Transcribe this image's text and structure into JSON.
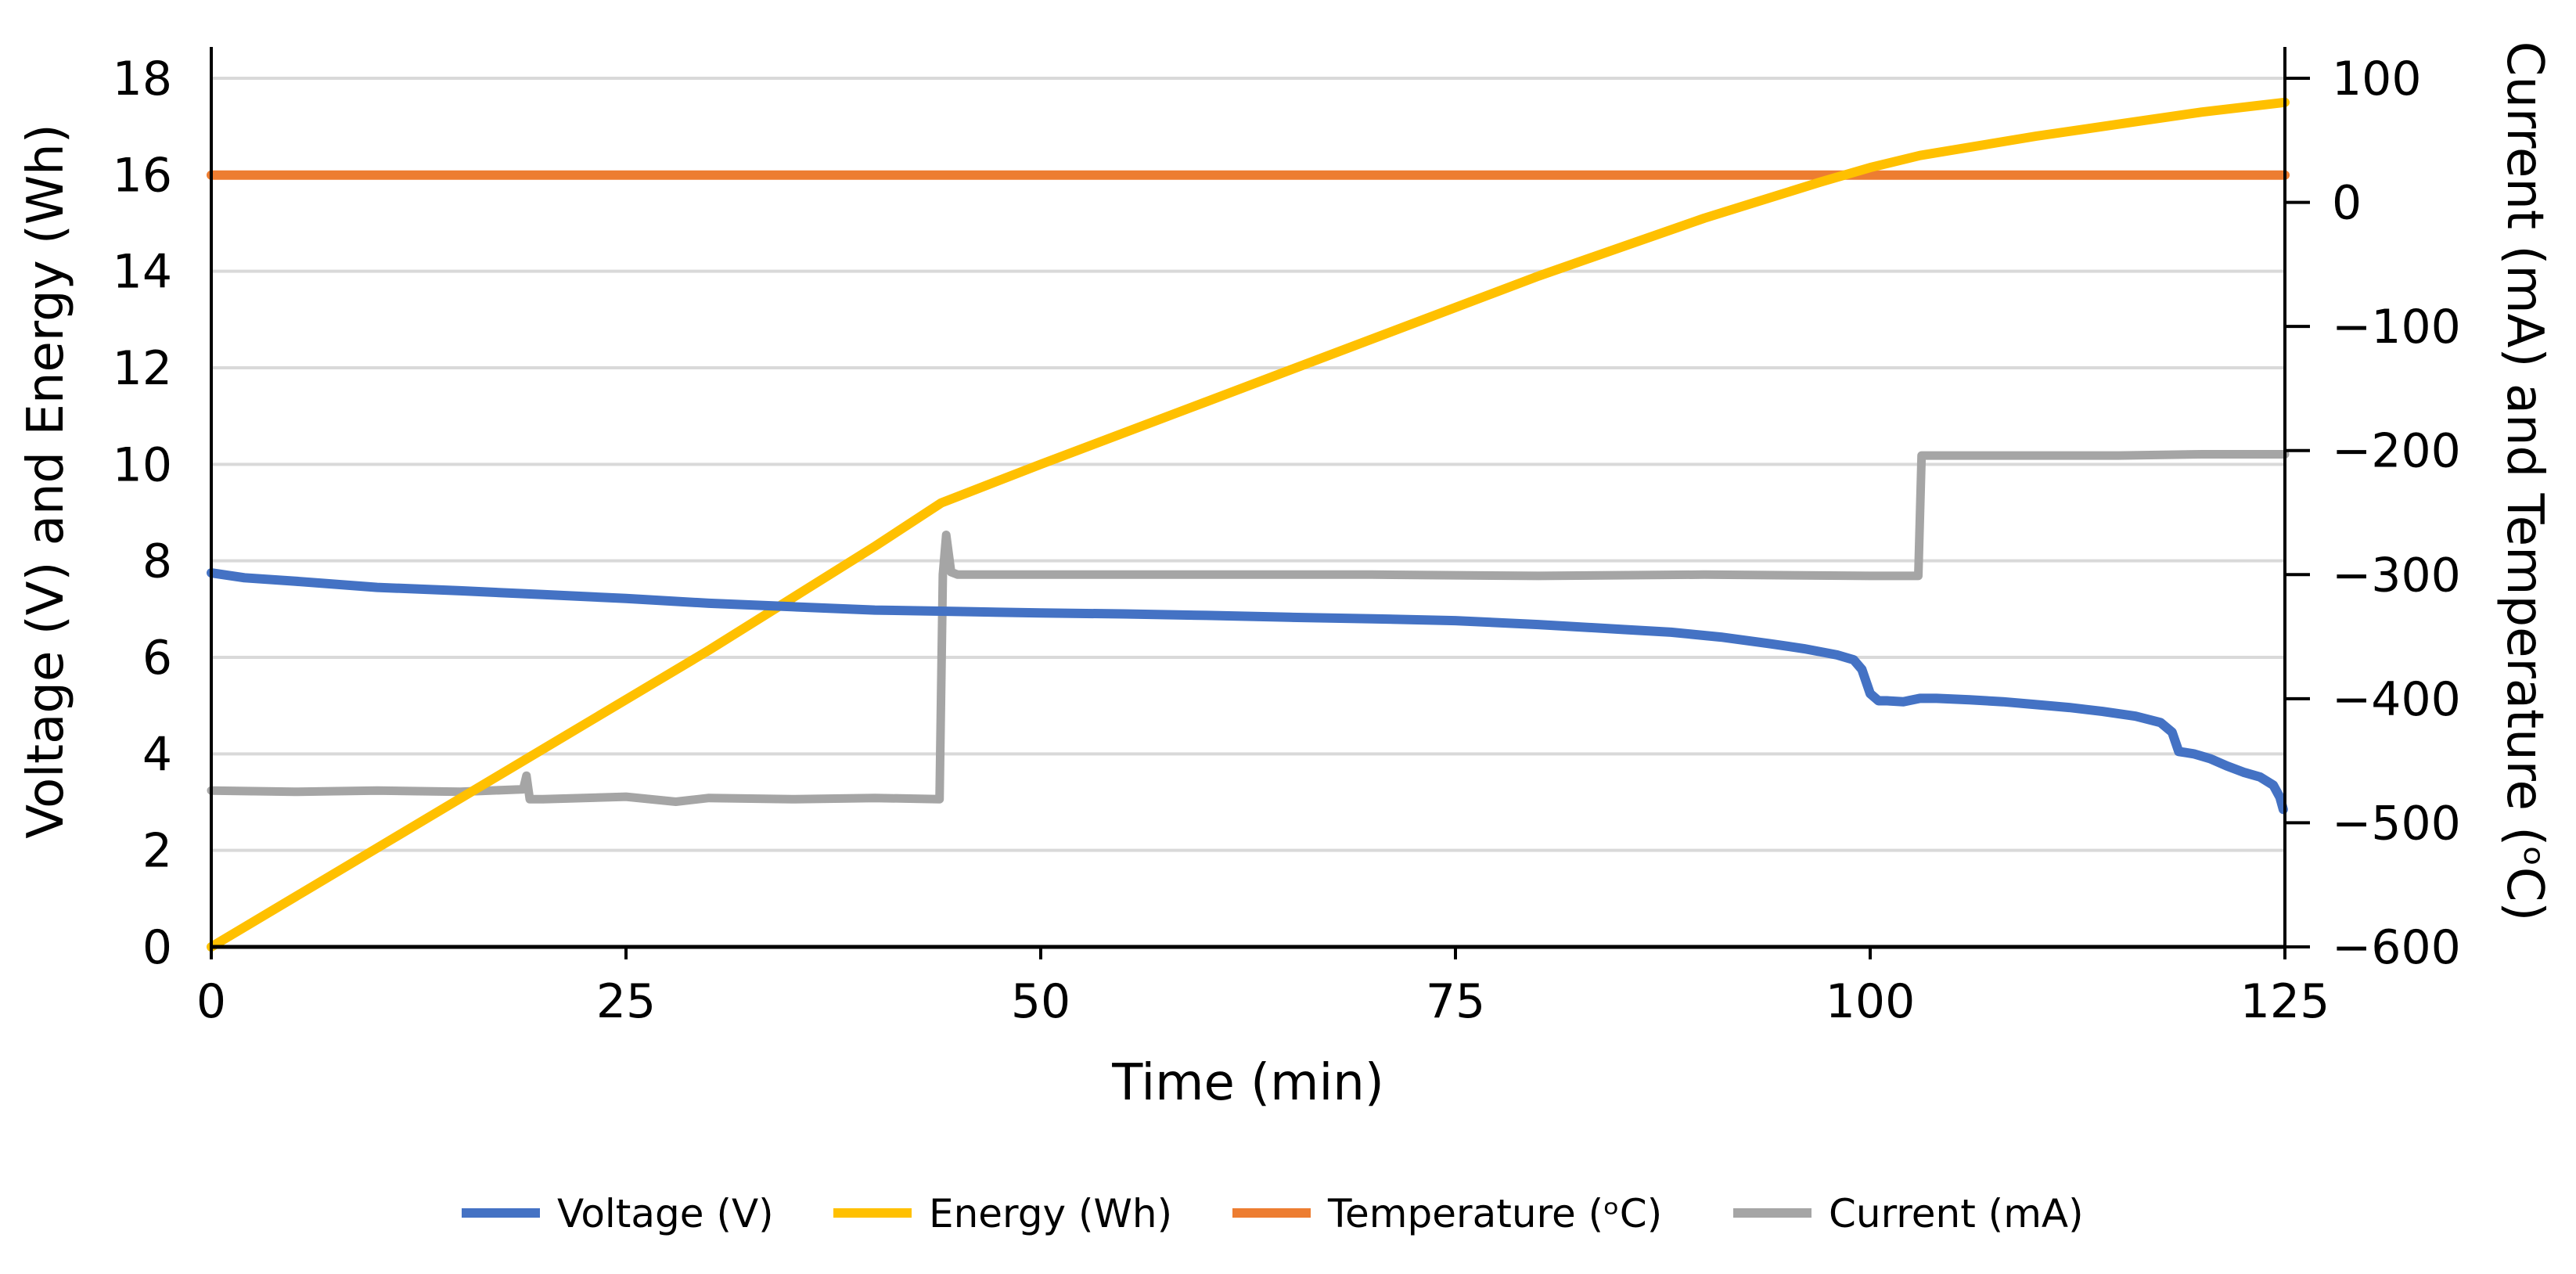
{
  "chart_data": {
    "type": "line",
    "title": "",
    "xlabel": "Time (min)",
    "ylabel_left": "Voltage (V) and Energy (Wh)",
    "ylabel_right": "Current (mA) and Temperature (ᵒC)",
    "xlim": [
      0,
      125
    ],
    "ylim_left": [
      0,
      18
    ],
    "ylim_right": [
      -600,
      100
    ],
    "x_ticks": [
      0,
      25,
      50,
      75,
      100,
      125
    ],
    "x_tick_labels": [
      "0",
      "25",
      "50",
      "75",
      "100",
      "125"
    ],
    "y_left_ticks": [
      0,
      2,
      4,
      6,
      8,
      10,
      12,
      14,
      16,
      18
    ],
    "y_left_tick_labels": [
      "0",
      "2",
      "4",
      "6",
      "8",
      "10",
      "12",
      "14",
      "16",
      "18"
    ],
    "y_right_ticks": [
      100,
      0,
      -100,
      -200,
      -300,
      -400,
      -500,
      -600
    ],
    "y_right_tick_labels": [
      "100",
      "0",
      "−100",
      "−200",
      "−300",
      "−400",
      "−500",
      "−600"
    ],
    "grid": true,
    "legend_position": "bottom",
    "series": [
      {
        "name": "Voltage (V)",
        "axis": "left",
        "color": "#4472C4",
        "points": [
          [
            0,
            7.75
          ],
          [
            2,
            7.65
          ],
          [
            5,
            7.58
          ],
          [
            10,
            7.45
          ],
          [
            15,
            7.38
          ],
          [
            20,
            7.3
          ],
          [
            25,
            7.22
          ],
          [
            30,
            7.12
          ],
          [
            35,
            7.05
          ],
          [
            40,
            6.98
          ],
          [
            45,
            6.95
          ],
          [
            50,
            6.92
          ],
          [
            55,
            6.9
          ],
          [
            60,
            6.87
          ],
          [
            65,
            6.83
          ],
          [
            70,
            6.8
          ],
          [
            75,
            6.76
          ],
          [
            80,
            6.68
          ],
          [
            85,
            6.58
          ],
          [
            88,
            6.52
          ],
          [
            91,
            6.42
          ],
          [
            94,
            6.28
          ],
          [
            96,
            6.18
          ],
          [
            98,
            6.05
          ],
          [
            99,
            5.95
          ],
          [
            99.5,
            5.75
          ],
          [
            100,
            5.25
          ],
          [
            100.5,
            5.1
          ],
          [
            101,
            5.1
          ],
          [
            102,
            5.08
          ],
          [
            103,
            5.15
          ],
          [
            104,
            5.15
          ],
          [
            106,
            5.12
          ],
          [
            108,
            5.08
          ],
          [
            110,
            5.02
          ],
          [
            112,
            4.96
          ],
          [
            114,
            4.88
          ],
          [
            116,
            4.78
          ],
          [
            117.5,
            4.65
          ],
          [
            118.2,
            4.45
          ],
          [
            118.6,
            4.05
          ],
          [
            119.5,
            4.0
          ],
          [
            120.5,
            3.9
          ],
          [
            121.5,
            3.75
          ],
          [
            122.5,
            3.62
          ],
          [
            123.5,
            3.52
          ],
          [
            124.3,
            3.35
          ],
          [
            124.7,
            3.1
          ],
          [
            124.9,
            2.85
          ]
        ]
      },
      {
        "name": "Energy (Wh)",
        "axis": "left",
        "color": "#FFC000",
        "points": [
          [
            0,
            0
          ],
          [
            10,
            2.05
          ],
          [
            20,
            4.1
          ],
          [
            30,
            6.15
          ],
          [
            40,
            8.3
          ],
          [
            44,
            9.2
          ],
          [
            50,
            10.0
          ],
          [
            60,
            11.3
          ],
          [
            70,
            12.6
          ],
          [
            80,
            13.9
          ],
          [
            90,
            15.1
          ],
          [
            97,
            15.85
          ],
          [
            100,
            16.15
          ],
          [
            103,
            16.4
          ],
          [
            110,
            16.8
          ],
          [
            115,
            17.05
          ],
          [
            120,
            17.3
          ],
          [
            125,
            17.5
          ]
        ]
      },
      {
        "name": "Temperature (ᵒC)",
        "axis": "right",
        "color": "#ED7D31",
        "points": [
          [
            0,
            22
          ],
          [
            125,
            22
          ]
        ]
      },
      {
        "name": "Current (mA)",
        "axis": "right",
        "color": "#A5A5A5",
        "points": [
          [
            0,
            -474
          ],
          [
            5,
            -475
          ],
          [
            10,
            -474
          ],
          [
            15,
            -475
          ],
          [
            18.8,
            -473
          ],
          [
            19,
            -462
          ],
          [
            19.2,
            -481
          ],
          [
            20,
            -481
          ],
          [
            25,
            -479
          ],
          [
            28,
            -483
          ],
          [
            30,
            -480
          ],
          [
            35,
            -481
          ],
          [
            40,
            -480
          ],
          [
            43.9,
            -481
          ],
          [
            44.1,
            -300
          ],
          [
            44.3,
            -268
          ],
          [
            44.6,
            -298
          ],
          [
            45,
            -300
          ],
          [
            50,
            -300
          ],
          [
            60,
            -300
          ],
          [
            70,
            -300
          ],
          [
            80,
            -301
          ],
          [
            90,
            -300
          ],
          [
            100,
            -301
          ],
          [
            102.9,
            -301
          ],
          [
            103.1,
            -204
          ],
          [
            105,
            -204
          ],
          [
            110,
            -204
          ],
          [
            115,
            -204
          ],
          [
            120,
            -203
          ],
          [
            125,
            -203
          ]
        ]
      }
    ]
  }
}
